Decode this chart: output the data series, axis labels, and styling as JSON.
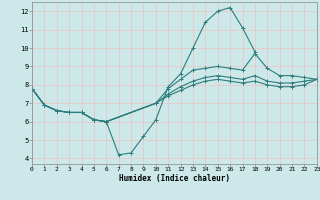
{
  "xlabel": "Humidex (Indice chaleur)",
  "bg_color": "#cce8e8",
  "grid_color": "#e8c8c8",
  "line_color": "#2e7d7d",
  "xlim": [
    0,
    23
  ],
  "ylim": [
    3.7,
    12.5
  ],
  "xticks": [
    0,
    1,
    2,
    3,
    4,
    5,
    6,
    7,
    8,
    9,
    10,
    11,
    12,
    13,
    14,
    15,
    16,
    17,
    18,
    19,
    20,
    21,
    22,
    23
  ],
  "yticks": [
    4,
    5,
    6,
    7,
    8,
    9,
    10,
    11,
    12
  ],
  "lines": [
    {
      "x": [
        0,
        1,
        2,
        3,
        4,
        5,
        6,
        7,
        8,
        9,
        10,
        11,
        12,
        13,
        14,
        15,
        16,
        17,
        18
      ],
      "y": [
        7.8,
        6.9,
        6.6,
        6.5,
        6.5,
        6.1,
        6.0,
        4.2,
        4.3,
        5.2,
        6.1,
        7.9,
        8.6,
        10.0,
        11.4,
        12.0,
        12.2,
        11.1,
        9.8
      ]
    },
    {
      "x": [
        0,
        1,
        2,
        3,
        4,
        5,
        6,
        10,
        11,
        12,
        13,
        14,
        15,
        16,
        17,
        18,
        19,
        20,
        21,
        22,
        23
      ],
      "y": [
        7.8,
        6.9,
        6.6,
        6.5,
        6.5,
        6.1,
        6.0,
        7.0,
        7.8,
        8.3,
        8.8,
        8.9,
        9.0,
        8.9,
        8.8,
        9.7,
        8.9,
        8.5,
        8.5,
        8.4,
        8.3
      ]
    },
    {
      "x": [
        0,
        1,
        2,
        3,
        4,
        5,
        6,
        10,
        11,
        12,
        13,
        14,
        15,
        16,
        17,
        18,
        19,
        20,
        21,
        22,
        23
      ],
      "y": [
        7.8,
        6.9,
        6.6,
        6.5,
        6.5,
        6.1,
        6.0,
        7.0,
        7.5,
        7.9,
        8.2,
        8.4,
        8.5,
        8.4,
        8.3,
        8.5,
        8.2,
        8.1,
        8.1,
        8.2,
        8.3
      ]
    },
    {
      "x": [
        0,
        1,
        2,
        3,
        4,
        5,
        6,
        10,
        11,
        12,
        13,
        14,
        15,
        16,
        17,
        18,
        19,
        20,
        21,
        22,
        23
      ],
      "y": [
        7.8,
        6.9,
        6.6,
        6.5,
        6.5,
        6.1,
        6.0,
        7.0,
        7.4,
        7.7,
        8.0,
        8.2,
        8.3,
        8.2,
        8.1,
        8.2,
        8.0,
        7.9,
        7.9,
        8.0,
        8.3
      ]
    }
  ]
}
